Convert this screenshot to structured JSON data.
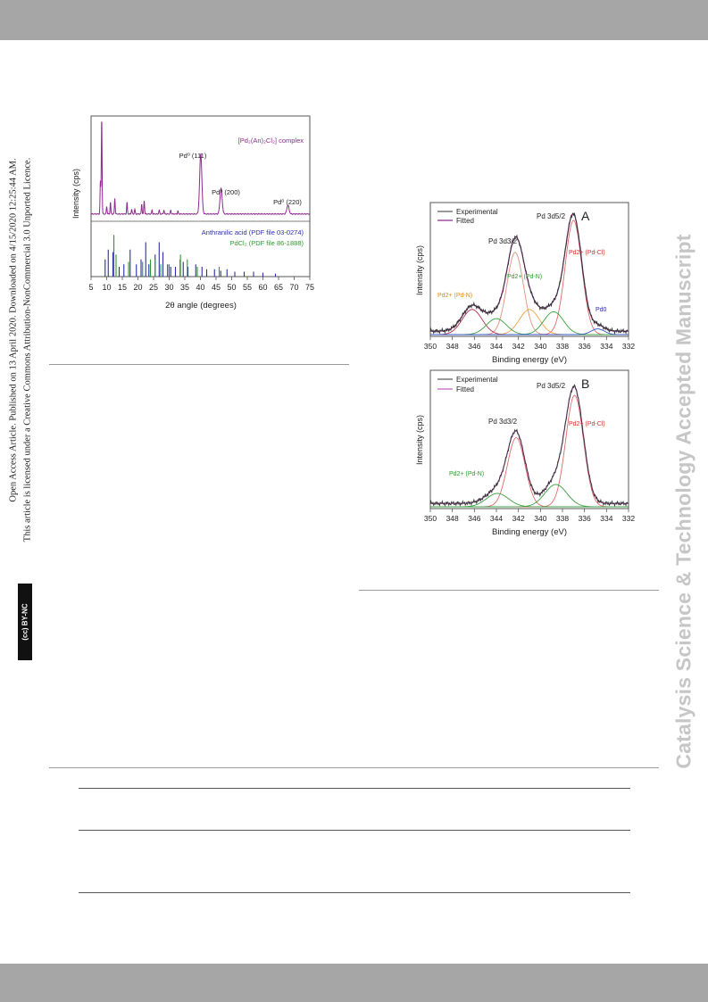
{
  "page": {
    "watermark": "Catalysis Science & Technology Accepted Manuscript",
    "open_access_line": "Open Access Article. Published on 13 April 2020. Downloaded on 4/15/2020 12:25:44 AM.",
    "license_line": "This article is licensed under a Creative Commons Attribution-NonCommercial 3.0 Unported Licence.",
    "cc_badge": "(cc) BY-NC"
  },
  "chart_data": [
    {
      "type": "line",
      "xlabel": "2θ angle (degrees)",
      "ylabel": "Intensity (cps)",
      "xlim": [
        5,
        75
      ],
      "xticks": [
        5,
        10,
        15,
        20,
        25,
        30,
        35,
        40,
        45,
        50,
        55,
        60,
        65,
        70,
        75
      ],
      "legend_entries": {
        "complex": "[Pd₂(An)₂Cl₂] complex",
        "anthranilic": "Anthranilic acid (PDF file 03-0274)",
        "pdcl2": "PdCl₂ (PDF file 86-1888)"
      },
      "annotations": {
        "pd111": "Pd⁰ (111)",
        "pd200": "Pd⁰ (200)",
        "pd220": "Pd⁰ (220)"
      },
      "colors": {
        "complex": "#8e2a8e",
        "anthranilic": "#2b2fa6",
        "pdcl2": "#2e9a2e"
      },
      "series": [
        {
          "key": "complex",
          "peaks": [
            [
              8.0,
              0.35
            ],
            [
              8.4,
              1.0
            ],
            [
              10.0,
              0.08
            ],
            [
              11.2,
              0.12
            ],
            [
              12.6,
              0.16
            ],
            [
              16.5,
              0.12
            ],
            [
              18.0,
              0.05
            ],
            [
              19.0,
              0.05
            ],
            [
              21.2,
              0.1
            ],
            [
              22.0,
              0.14
            ],
            [
              24.5,
              0.04
            ],
            [
              26.8,
              0.04
            ],
            [
              28.3,
              0.04
            ],
            [
              30.5,
              0.04
            ],
            [
              32.8,
              0.03
            ],
            [
              40.1,
              0.62
            ],
            [
              46.6,
              0.26
            ],
            [
              68.0,
              0.09
            ]
          ]
        }
      ],
      "sticks": {
        "anthranilic": [
          [
            9.5,
            0.35
          ],
          [
            10.5,
            0.55
          ],
          [
            12.0,
            0.5
          ],
          [
            14.0,
            0.2
          ],
          [
            15.5,
            0.25
          ],
          [
            17.5,
            0.55
          ],
          [
            19.5,
            0.25
          ],
          [
            21.0,
            0.35
          ],
          [
            22.5,
            0.7
          ],
          [
            23.5,
            0.25
          ],
          [
            25.5,
            0.45
          ],
          [
            26.8,
            0.7
          ],
          [
            28.0,
            0.5
          ],
          [
            29.5,
            0.25
          ],
          [
            30.5,
            0.2
          ],
          [
            32.0,
            0.2
          ],
          [
            33.5,
            0.35
          ],
          [
            34.5,
            0.3
          ],
          [
            36.0,
            0.2
          ],
          [
            38.5,
            0.25
          ],
          [
            40.5,
            0.2
          ],
          [
            42.0,
            0.15
          ],
          [
            44.5,
            0.15
          ],
          [
            46.5,
            0.12
          ],
          [
            48.5,
            0.15
          ],
          [
            51.0,
            0.1
          ],
          [
            54.0,
            0.1
          ],
          [
            57.0,
            0.1
          ],
          [
            60.0,
            0.08
          ],
          [
            64.0,
            0.06
          ]
        ],
        "pdcl2": [
          [
            12.3,
            0.85
          ],
          [
            13.0,
            0.45
          ],
          [
            17.0,
            0.3
          ],
          [
            21.5,
            0.3
          ],
          [
            24.0,
            0.35
          ],
          [
            25.5,
            0.35
          ],
          [
            27.3,
            0.25
          ],
          [
            30.0,
            0.25
          ],
          [
            33.6,
            0.45
          ],
          [
            35.8,
            0.35
          ],
          [
            39.0,
            0.2
          ],
          [
            46.0,
            0.2
          ]
        ]
      }
    },
    {
      "type": "line",
      "panel_label": "A",
      "xlabel": "Binding energy (eV)",
      "ylabel": "Intensity (cps)",
      "xlim": [
        350,
        332
      ],
      "xticks": [
        350,
        348,
        346,
        344,
        342,
        340,
        338,
        336,
        334,
        332
      ],
      "legend_entries": [
        "Experimental",
        "Fitted"
      ],
      "annotations": {
        "pd3d32": "Pd 3d3/2",
        "pd3d52": "Pd 3d5/2",
        "pdn_left": "Pd2+ (Pd-N)",
        "pdn_right": "Pd2+ (Pd-N)",
        "pdcl": "Pd2+ (Pd-Cl)",
        "pd0": "Pd0"
      },
      "components": [
        {
          "center": 342.3,
          "height": 0.72,
          "width": 0.75,
          "color": "#e0907a"
        },
        {
          "center": 337.0,
          "height": 1.0,
          "width": 0.75,
          "color": "#e06a6a"
        },
        {
          "center": 346.2,
          "height": 0.22,
          "width": 0.9,
          "color": "#b0304a"
        },
        {
          "center": 341.0,
          "height": 0.22,
          "width": 0.9,
          "color": "#f0a040"
        },
        {
          "center": 344.0,
          "height": 0.14,
          "width": 0.9,
          "color": "#3aa040"
        },
        {
          "center": 338.8,
          "height": 0.2,
          "width": 0.9,
          "color": "#3aa040"
        },
        {
          "center": 334.8,
          "height": 0.05,
          "width": 0.6,
          "color": "#3050c0"
        }
      ]
    },
    {
      "type": "line",
      "panel_label": "B",
      "xlabel": "Binding energy (eV)",
      "ylabel": "Intensity (cps)",
      "xlim": [
        350,
        332
      ],
      "xticks": [
        350,
        348,
        346,
        344,
        342,
        340,
        338,
        336,
        334,
        332
      ],
      "legend_entries": [
        "Experimental",
        "Fitted"
      ],
      "annotations": {
        "pd3d32": "Pd 3d3/2",
        "pd3d52": "Pd 3d5/2",
        "pdn": "Pd2+ (Pd-N)",
        "pdcl": "Pd2+ (Pd-Cl)"
      },
      "components": [
        {
          "center": 342.2,
          "height": 0.62,
          "width": 0.8,
          "color": "#e06a6a"
        },
        {
          "center": 336.9,
          "height": 1.0,
          "width": 0.8,
          "color": "#e06a6a"
        },
        {
          "center": 343.9,
          "height": 0.12,
          "width": 1.0,
          "color": "#3aa040"
        },
        {
          "center": 338.6,
          "height": 0.2,
          "width": 1.0,
          "color": "#3aa040"
        }
      ]
    }
  ]
}
